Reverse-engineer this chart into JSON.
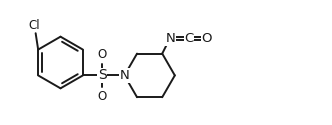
{
  "line_color": "#1a1a1a",
  "bg_color": "#ffffff",
  "line_width": 1.4,
  "font_size": 8.5,
  "fig_width": 3.32,
  "fig_height": 1.25,
  "dpi": 100,
  "xlim": [
    0,
    10.5
  ],
  "ylim": [
    0,
    3.8
  ]
}
